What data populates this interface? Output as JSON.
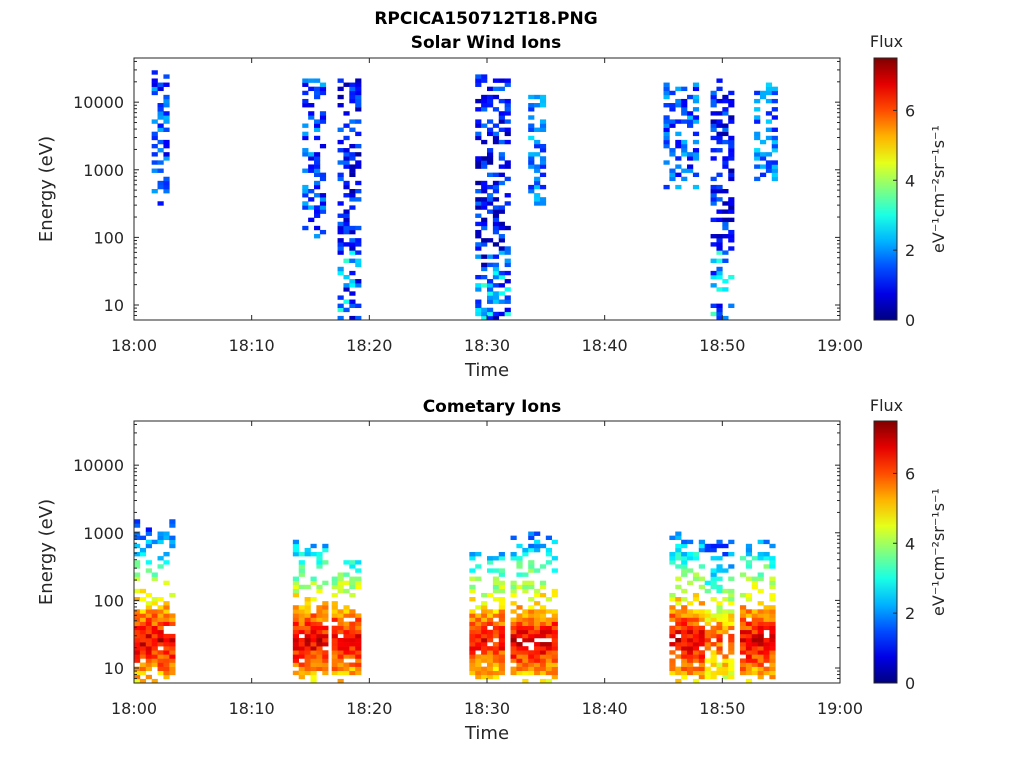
{
  "figure_title": "RPCICA150712T18.PNG",
  "chart_data": [
    {
      "type": "heatmap",
      "title": "Solar Wind Ions",
      "xlabel": "Time",
      "ylabel": "Energy (eV)",
      "y_scale": "log",
      "ylim": [
        6,
        45000
      ],
      "xlim": [
        "18:00",
        "19:00"
      ],
      "x_ticks": [
        "18:00",
        "18:10",
        "18:20",
        "18:30",
        "18:40",
        "18:50",
        "19:00"
      ],
      "y_ticks": [
        "10",
        "100",
        "1000",
        "10000"
      ],
      "colorbar": {
        "title": "Flux",
        "unit": "eV⁻¹cm⁻²sr⁻¹s⁻¹",
        "ticks": [
          "0",
          "2",
          "4",
          "6"
        ],
        "range": [
          0,
          7.5
        ],
        "colormap": "jet"
      },
      "bursts": [
        {
          "start_min": 1.5,
          "end_min": 3.0,
          "e_low": 300,
          "e_high": 28000,
          "flux": 1.5
        },
        {
          "start_min": 14.3,
          "end_min": 16.3,
          "e_low": 100,
          "e_high": 22000,
          "flux": 1.5
        },
        {
          "start_min": 17.3,
          "end_min": 19.2,
          "e_low": 6,
          "e_high": 26000,
          "flux": 1.0
        },
        {
          "start_min": 29.0,
          "end_min": 32.0,
          "e_low": 6,
          "e_high": 26000,
          "flux": 1.0
        },
        {
          "start_min": 33.5,
          "end_min": 35.0,
          "e_low": 300,
          "e_high": 13000,
          "flux": 1.8
        },
        {
          "start_min": 45.0,
          "end_min": 48.0,
          "e_low": 500,
          "e_high": 20000,
          "flux": 1.6
        },
        {
          "start_min": 49.0,
          "end_min": 51.0,
          "e_low": 6,
          "e_high": 22000,
          "flux": 1.0
        },
        {
          "start_min": 52.7,
          "end_min": 54.5,
          "e_low": 700,
          "e_high": 20000,
          "flux": 1.8
        }
      ]
    },
    {
      "type": "heatmap",
      "title": "Cometary Ions",
      "xlabel": "Time",
      "ylabel": "Energy (eV)",
      "y_scale": "log",
      "ylim": [
        6,
        45000
      ],
      "xlim": [
        "18:00",
        "19:00"
      ],
      "x_ticks": [
        "18:00",
        "18:10",
        "18:20",
        "18:30",
        "18:40",
        "18:50",
        "19:00"
      ],
      "y_ticks": [
        "10",
        "100",
        "1000",
        "10000"
      ],
      "colorbar": {
        "title": "Flux",
        "unit": "eV⁻¹cm⁻²sr⁻¹s⁻¹",
        "ticks": [
          "0",
          "2",
          "4",
          "6"
        ],
        "range": [
          0,
          7.5
        ],
        "colormap": "jet"
      },
      "bursts": [
        {
          "start_min": 0.0,
          "end_min": 3.3,
          "e_low": 6,
          "e_high": 1600,
          "flux": 6.8
        },
        {
          "start_min": 13.5,
          "end_min": 16.2,
          "e_low": 6,
          "e_high": 900,
          "flux": 6.8
        },
        {
          "start_min": 16.8,
          "end_min": 19.0,
          "e_low": 6,
          "e_high": 400,
          "flux": 6.8
        },
        {
          "start_min": 28.5,
          "end_min": 31.5,
          "e_low": 6,
          "e_high": 500,
          "flux": 6.6
        },
        {
          "start_min": 32.0,
          "end_min": 35.8,
          "e_low": 6,
          "e_high": 1100,
          "flux": 6.8
        },
        {
          "start_min": 45.5,
          "end_min": 48.2,
          "e_low": 6,
          "e_high": 1100,
          "flux": 6.8
        },
        {
          "start_min": 48.5,
          "end_min": 51.0,
          "e_low": 6,
          "e_high": 800,
          "flux": 6.0
        },
        {
          "start_min": 51.5,
          "end_min": 54.5,
          "e_low": 6,
          "e_high": 800,
          "flux": 6.8
        }
      ]
    }
  ]
}
